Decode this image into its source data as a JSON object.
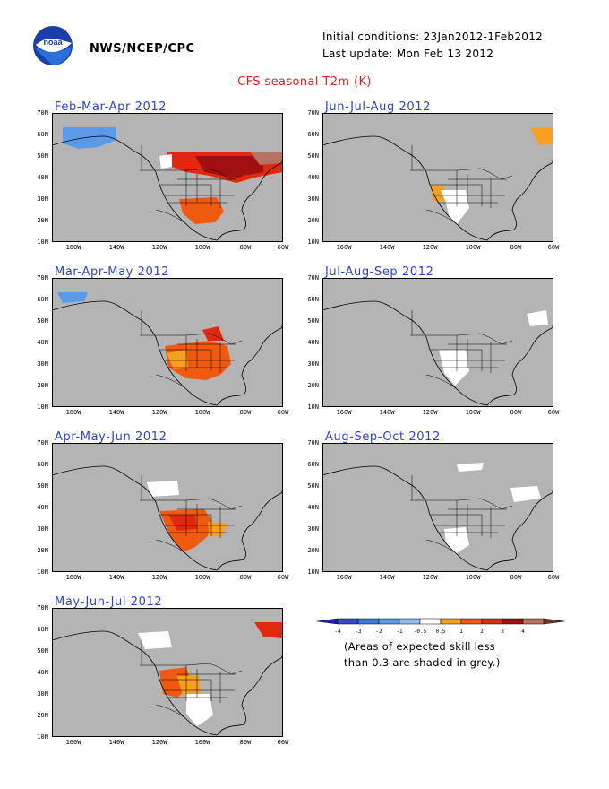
{
  "header": {
    "agency": "NWS/NCEP/CPC",
    "initial_conditions": "Initial conditions: 23Jan2012-1Feb2012",
    "last_update": "Last update: Mon Feb 13 2012",
    "title": "CFS seasonal T2m (K)"
  },
  "axes": {
    "lat_labels": [
      "70N",
      "60N",
      "50N",
      "40N",
      "30N",
      "20N",
      "10N"
    ],
    "lon_labels": [
      "160W",
      "140W",
      "120W",
      "100W",
      "80W",
      "60W"
    ]
  },
  "panels": [
    {
      "title": "Feb-Mar-Apr 2012"
    },
    {
      "title": "Jun-Jul-Aug 2012"
    },
    {
      "title": "Mar-Apr-May 2012"
    },
    {
      "title": "Jul-Aug-Sep 2012"
    },
    {
      "title": "Apr-May-Jun 2012"
    },
    {
      "title": "Aug-Sep-Oct 2012"
    },
    {
      "title": "May-Jun-Jul 2012"
    }
  ],
  "legend": {
    "ticks": [
      "-4",
      "-3",
      "-2",
      "-1",
      "-0.5",
      "0.5",
      "1",
      "2",
      "3",
      "4"
    ],
    "colors": [
      "#2020a8",
      "#3848c8",
      "#3c7ad8",
      "#5a9ae8",
      "#8cbcf0",
      "#ffffff",
      "#f5a020",
      "#f05a10",
      "#e02a10",
      "#a01010",
      "#b87060",
      "#6a3828"
    ],
    "note_line1": "(Areas of expected skill less",
    "note_line2": "than 0.3 are shaded in grey.)"
  },
  "colors": {
    "grey": "#b4b4b4",
    "land_line": "#000000",
    "title_blue": "#2c45c8",
    "title_red": "#e02020"
  }
}
